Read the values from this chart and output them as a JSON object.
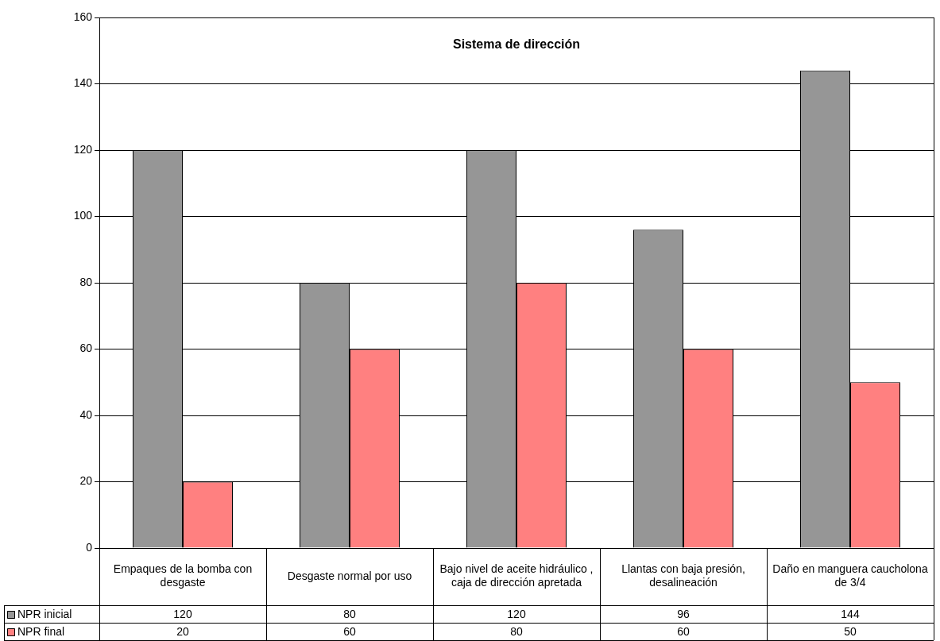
{
  "chart_data": {
    "type": "bar",
    "title": "Sistema de dirección",
    "categories": [
      "Empaques de la bomba con desgaste",
      "Desgaste normal por uso",
      "Bajo nivel de aceite hidráulico , caja de dirección apretada",
      "Llantas con baja presión, desalineación",
      "Daño en manguera caucholona de 3/4"
    ],
    "series": [
      {
        "name": "NPR inicial",
        "color": "#969696",
        "values": [
          120,
          80,
          120,
          96,
          144
        ]
      },
      {
        "name": "NPR final",
        "color": "#ff8080",
        "values": [
          20,
          60,
          80,
          60,
          50
        ]
      }
    ],
    "ylim": [
      0,
      160
    ],
    "yticks": [
      0,
      20,
      40,
      60,
      80,
      100,
      120,
      140,
      160
    ],
    "grid": "y",
    "legend": "bottom",
    "data_labels": true
  }
}
